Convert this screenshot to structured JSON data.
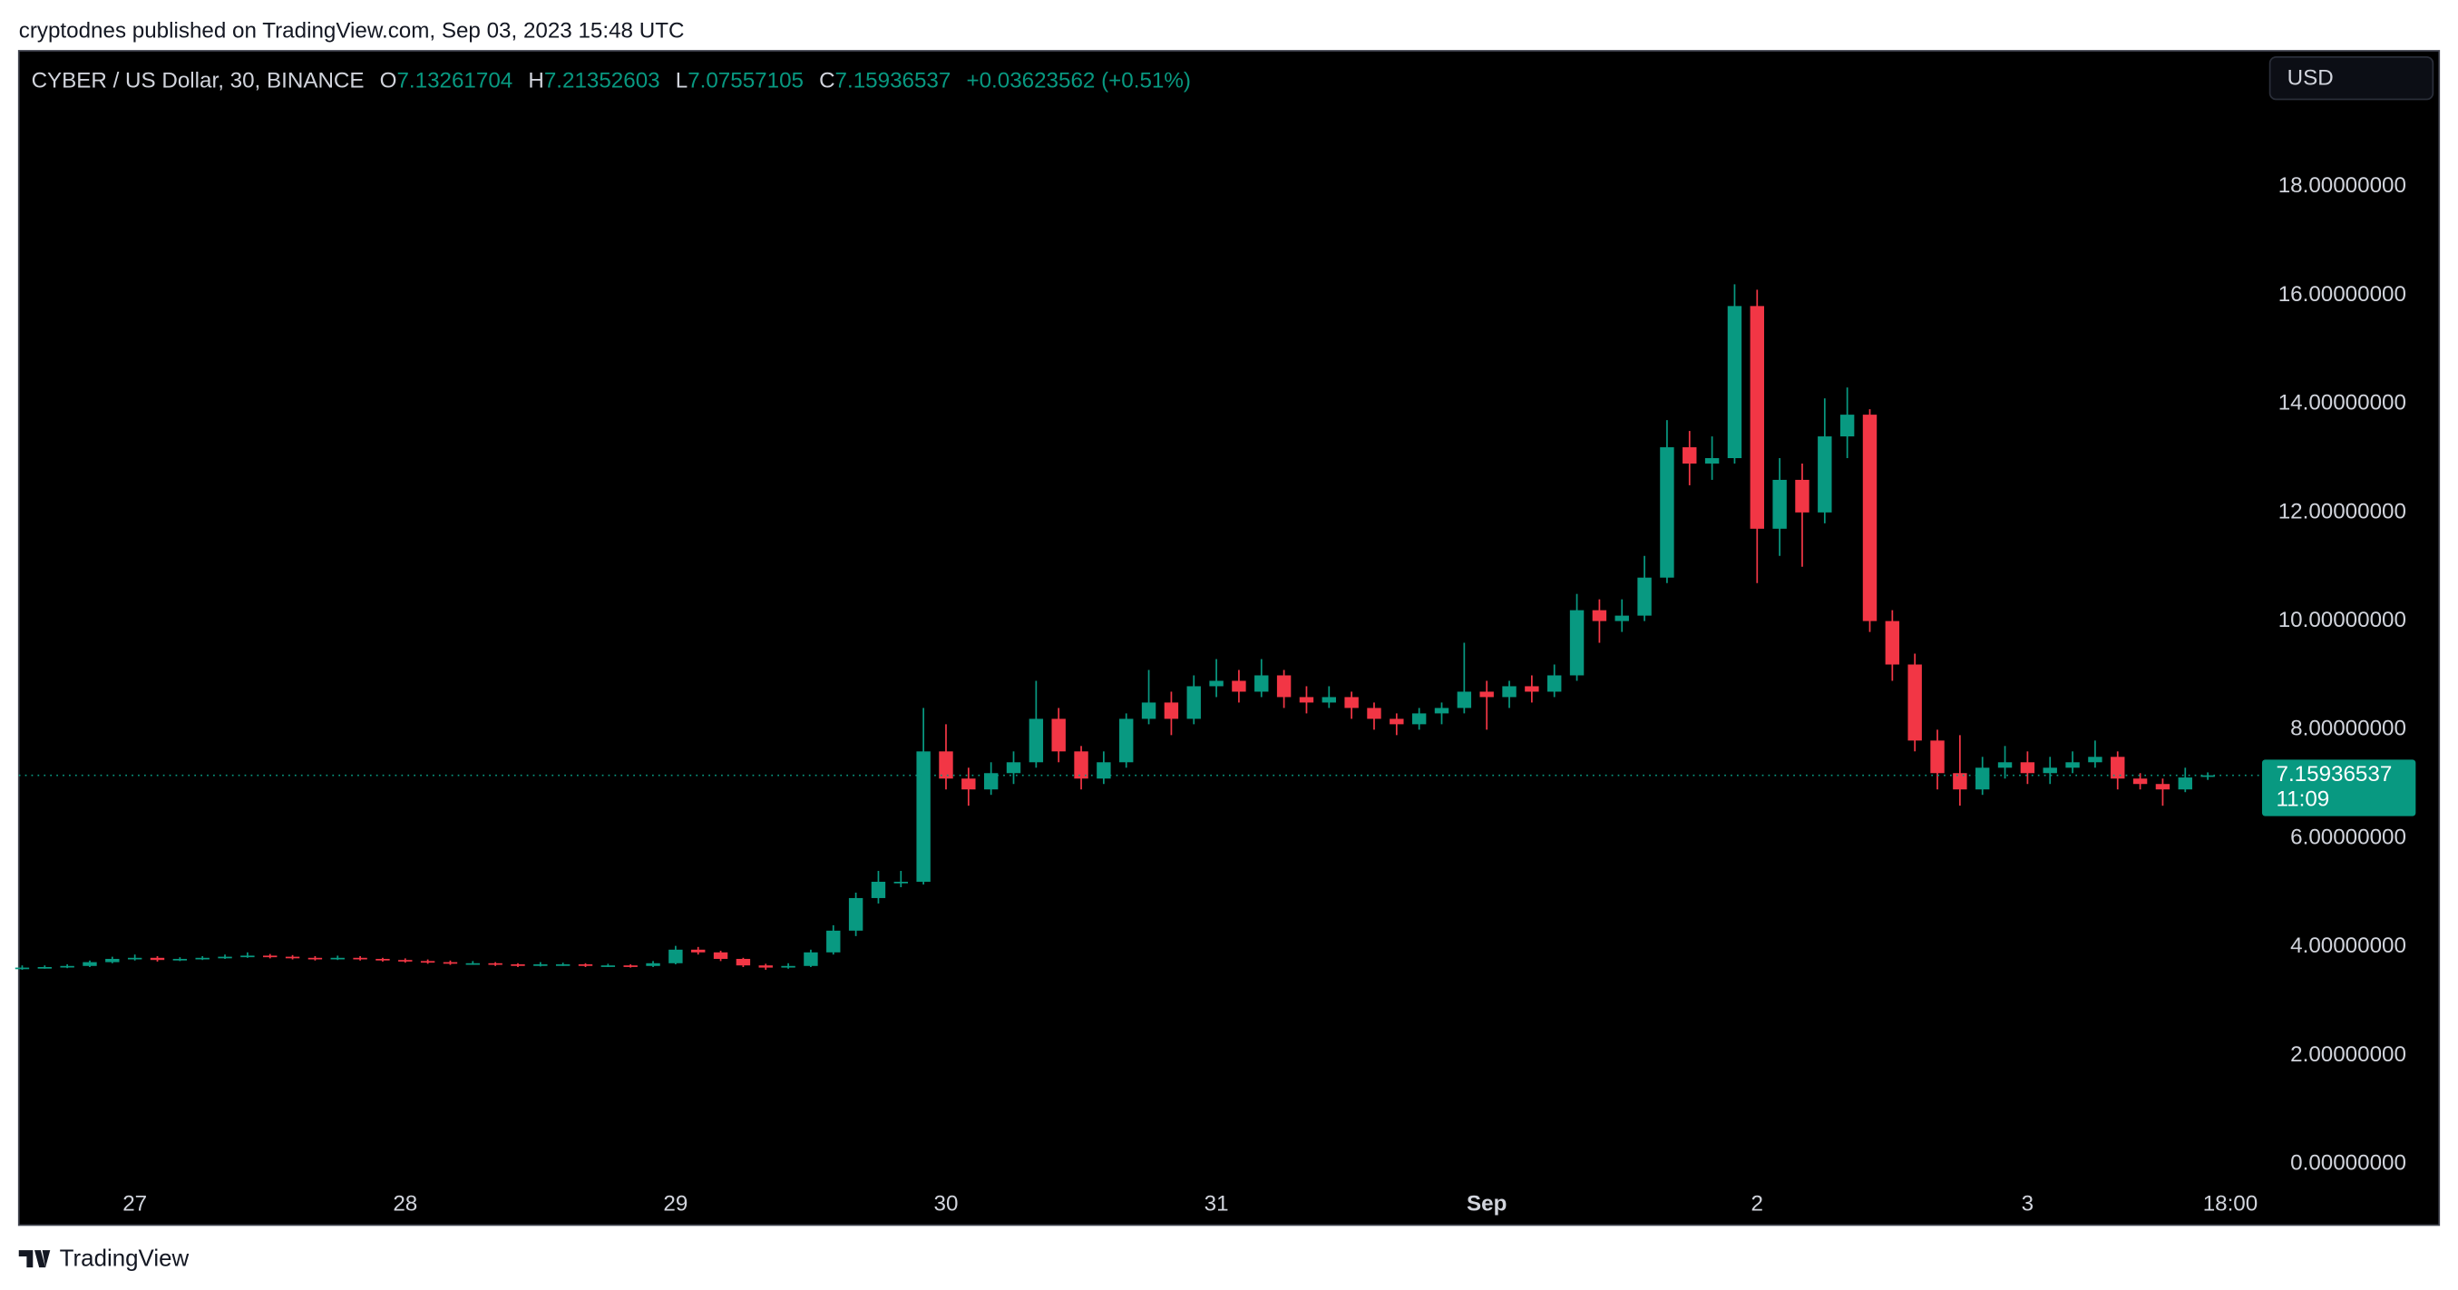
{
  "header": "cryptodnes published on TradingView.com, Sep 03, 2023 15:48 UTC",
  "footer": "TradingView",
  "chart_data": {
    "type": "candlestick",
    "title": "CYBER / US Dollar, 30, BINANCE",
    "ohlc_labels": [
      "O",
      "H",
      "L",
      "C"
    ],
    "change": "+0.03623562",
    "change_pct": "(+0.51%)",
    "currency": "USD",
    "countdown": "11:09",
    "up_color": "#089981",
    "down_color": "#f23645",
    "x": [
      -10,
      -8,
      -6,
      -4,
      -2,
      0,
      2,
      4,
      6,
      8,
      10,
      12,
      14,
      16,
      18,
      20,
      22,
      24,
      26,
      28,
      30,
      32,
      34,
      36,
      38,
      40,
      42,
      44,
      46,
      48,
      50,
      52,
      54,
      56,
      58,
      60,
      62,
      64,
      66,
      68,
      70,
      72,
      74,
      76,
      78,
      80,
      82,
      84,
      86,
      88,
      90,
      92,
      94,
      96,
      98,
      100,
      102,
      104,
      106,
      108,
      110,
      112,
      114,
      116,
      118,
      120,
      122,
      124,
      126,
      128,
      130,
      132,
      134,
      136,
      138,
      140,
      142,
      144,
      146,
      148,
      150,
      152,
      154,
      156,
      158,
      160,
      162,
      164,
      166,
      168,
      170,
      172,
      174,
      176,
      178,
      180,
      182,
      184
    ],
    "open": [
      3.6,
      3.62,
      3.63,
      3.65,
      3.72,
      3.78,
      3.8,
      3.76,
      3.78,
      3.8,
      3.82,
      3.84,
      3.82,
      3.8,
      3.78,
      3.8,
      3.78,
      3.76,
      3.74,
      3.72,
      3.7,
      3.7,
      3.68,
      3.66,
      3.68,
      3.68,
      3.66,
      3.66,
      3.65,
      3.7,
      3.95,
      3.9,
      3.78,
      3.66,
      3.62,
      3.65,
      3.9,
      4.3,
      4.9,
      5.2,
      5.2,
      7.6,
      7.1,
      6.9,
      7.2,
      7.4,
      8.2,
      7.6,
      7.1,
      7.4,
      8.2,
      8.5,
      8.2,
      8.8,
      8.9,
      8.7,
      9.0,
      8.6,
      8.5,
      8.6,
      8.4,
      8.2,
      8.1,
      8.3,
      8.4,
      8.7,
      8.6,
      8.8,
      8.7,
      9.0,
      10.2,
      10.0,
      10.1,
      10.8,
      13.2,
      12.9,
      13.0,
      15.8,
      11.7,
      12.6,
      12.0,
      13.4,
      13.8,
      10.0,
      9.2,
      7.8,
      7.2,
      6.9,
      7.3,
      7.4,
      7.2,
      7.3,
      7.4,
      7.5,
      7.1,
      7.0,
      6.9,
      7.13261704
    ],
    "high": [
      3.66,
      3.66,
      3.68,
      3.75,
      3.82,
      3.86,
      3.83,
      3.81,
      3.83,
      3.86,
      3.9,
      3.87,
      3.85,
      3.83,
      3.84,
      3.83,
      3.8,
      3.79,
      3.77,
      3.75,
      3.74,
      3.72,
      3.7,
      3.72,
      3.71,
      3.7,
      3.69,
      3.68,
      3.74,
      4.02,
      4.0,
      3.93,
      3.8,
      3.69,
      3.7,
      3.95,
      4.4,
      5.0,
      5.4,
      5.4,
      8.4,
      8.1,
      7.3,
      7.4,
      7.6,
      8.9,
      8.4,
      7.7,
      7.6,
      8.3,
      9.1,
      8.7,
      9.0,
      9.3,
      9.1,
      9.3,
      9.1,
      8.8,
      8.8,
      8.7,
      8.5,
      8.3,
      8.4,
      8.5,
      9.6,
      8.9,
      8.9,
      9.0,
      9.2,
      10.5,
      10.4,
      10.4,
      11.2,
      13.7,
      13.5,
      13.4,
      16.2,
      16.1,
      13.0,
      12.9,
      14.1,
      14.3,
      13.9,
      10.2,
      9.4,
      8.0,
      7.9,
      7.5,
      7.7,
      7.6,
      7.5,
      7.6,
      7.8,
      7.6,
      7.2,
      7.1,
      7.3,
      7.21352603
    ],
    "low": [
      3.58,
      3.6,
      3.61,
      3.63,
      3.7,
      3.75,
      3.73,
      3.74,
      3.76,
      3.78,
      3.8,
      3.79,
      3.77,
      3.75,
      3.76,
      3.75,
      3.73,
      3.71,
      3.69,
      3.67,
      3.67,
      3.65,
      3.63,
      3.64,
      3.65,
      3.63,
      3.63,
      3.62,
      3.63,
      3.68,
      3.86,
      3.74,
      3.63,
      3.58,
      3.6,
      3.63,
      3.86,
      4.2,
      4.8,
      5.1,
      5.15,
      6.9,
      6.6,
      6.8,
      7.0,
      7.3,
      7.4,
      6.9,
      7.0,
      7.3,
      8.1,
      7.9,
      8.1,
      8.6,
      8.5,
      8.6,
      8.4,
      8.3,
      8.4,
      8.2,
      8.0,
      7.9,
      8.0,
      8.1,
      8.3,
      8.0,
      8.4,
      8.5,
      8.6,
      8.9,
      9.6,
      9.8,
      10.0,
      10.7,
      12.5,
      12.6,
      12.9,
      10.7,
      11.2,
      11.0,
      11.8,
      13.0,
      9.8,
      8.9,
      7.6,
      6.9,
      6.6,
      6.8,
      7.1,
      7.0,
      7.0,
      7.2,
      7.3,
      6.9,
      6.9,
      6.6,
      6.85,
      7.07557105
    ],
    "close": [
      3.62,
      3.63,
      3.65,
      3.72,
      3.78,
      3.8,
      3.76,
      3.78,
      3.8,
      3.82,
      3.84,
      3.82,
      3.8,
      3.78,
      3.8,
      3.78,
      3.76,
      3.74,
      3.72,
      3.7,
      3.7,
      3.68,
      3.66,
      3.68,
      3.68,
      3.66,
      3.66,
      3.65,
      3.7,
      3.95,
      3.9,
      3.78,
      3.66,
      3.62,
      3.65,
      3.9,
      4.3,
      4.9,
      5.2,
      5.2,
      7.6,
      7.1,
      6.9,
      7.2,
      7.4,
      8.2,
      7.6,
      7.1,
      7.4,
      8.2,
      8.5,
      8.2,
      8.8,
      8.9,
      8.7,
      9.0,
      8.6,
      8.5,
      8.6,
      8.4,
      8.2,
      8.1,
      8.3,
      8.4,
      8.7,
      8.6,
      8.8,
      8.7,
      9.0,
      10.2,
      10.0,
      10.1,
      10.8,
      13.2,
      12.9,
      13.0,
      15.8,
      11.7,
      12.6,
      12.0,
      13.4,
      13.8,
      10.0,
      9.2,
      7.8,
      7.2,
      6.9,
      7.3,
      7.4,
      7.2,
      7.3,
      7.4,
      7.5,
      7.1,
      7.0,
      6.9,
      7.12,
      7.15936537
    ],
    "xlim": [
      -10.3,
      188.4
    ],
    "xticks": [
      {
        "value": 0,
        "label": "27"
      },
      {
        "value": 24,
        "label": "28"
      },
      {
        "value": 48,
        "label": "29"
      },
      {
        "value": 72,
        "label": "30"
      },
      {
        "value": 96,
        "label": "31"
      },
      {
        "value": 120,
        "label": "Sep"
      },
      {
        "value": 144,
        "label": "2"
      },
      {
        "value": 168,
        "label": "3"
      },
      {
        "value": 186,
        "label": "18:00"
      }
    ],
    "ylim": [
      -0.4,
      20.5
    ],
    "yticks": [
      {
        "value": 0,
        "label": "0.00000000"
      },
      {
        "value": 2,
        "label": "2.00000000"
      },
      {
        "value": 4,
        "label": "4.00000000"
      },
      {
        "value": 6,
        "label": "6.00000000"
      },
      {
        "value": 8,
        "label": "8.00000000"
      },
      {
        "value": 10,
        "label": "10.00000000"
      },
      {
        "value": 12,
        "label": "12.00000000"
      },
      {
        "value": 14,
        "label": "14.00000000"
      },
      {
        "value": 16,
        "label": "16.00000000"
      },
      {
        "value": 18,
        "label": "18.00000000"
      }
    ]
  }
}
